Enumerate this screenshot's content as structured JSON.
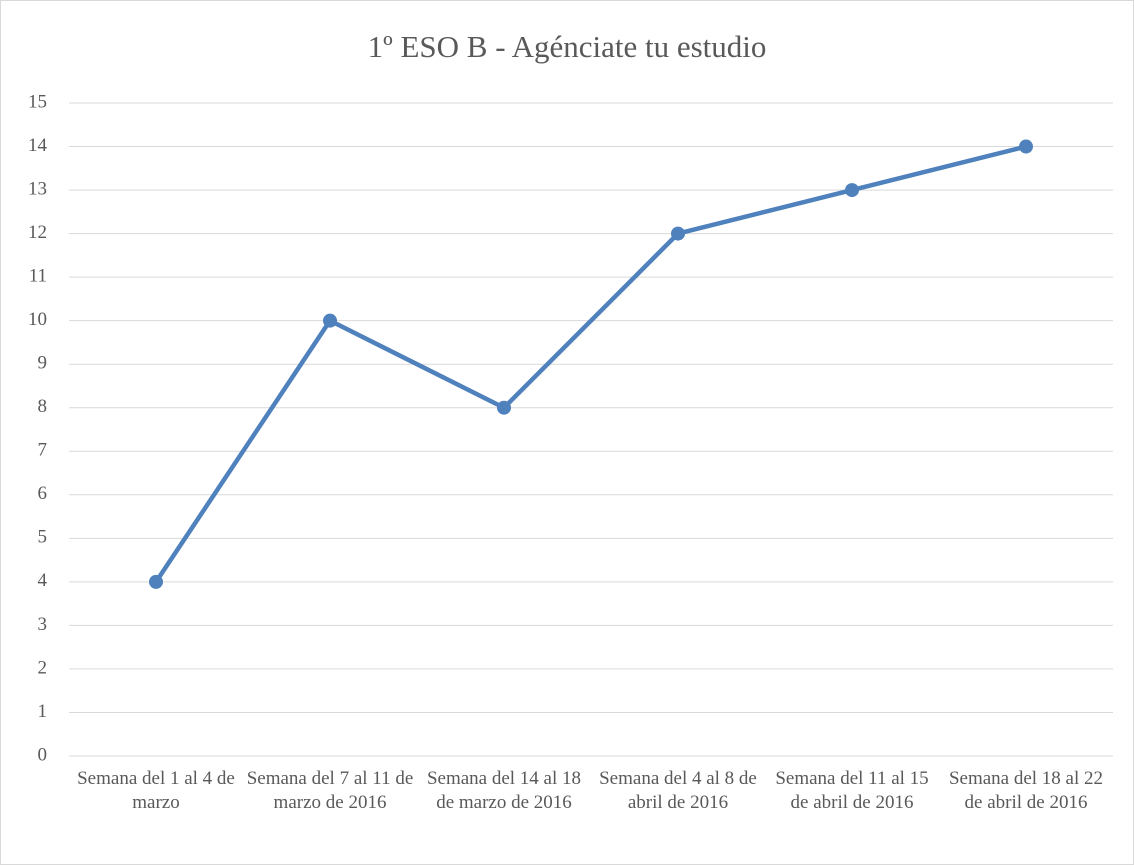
{
  "chart_data": {
    "type": "line",
    "title": "1º ESO B - Agénciate tu estudio",
    "categories": [
      "Semana del 1 al 4 de marzo",
      "Semana del 7 al 11 de marzo de 2016",
      "Semana del 14 al 18 de marzo de 2016",
      "Semana del 4 al 8 de abril de 2016",
      "Semana del 11 al 15 de abril de 2016",
      "Semana del 18 al 22 de abril de 2016"
    ],
    "values": [
      4,
      10,
      8,
      12,
      13,
      14
    ],
    "color": "#4f81bd",
    "ylim": [
      0,
      15
    ],
    "yticks": [
      0,
      1,
      2,
      3,
      4,
      5,
      6,
      7,
      8,
      9,
      10,
      11,
      12,
      13,
      14,
      15
    ],
    "grid": true
  }
}
